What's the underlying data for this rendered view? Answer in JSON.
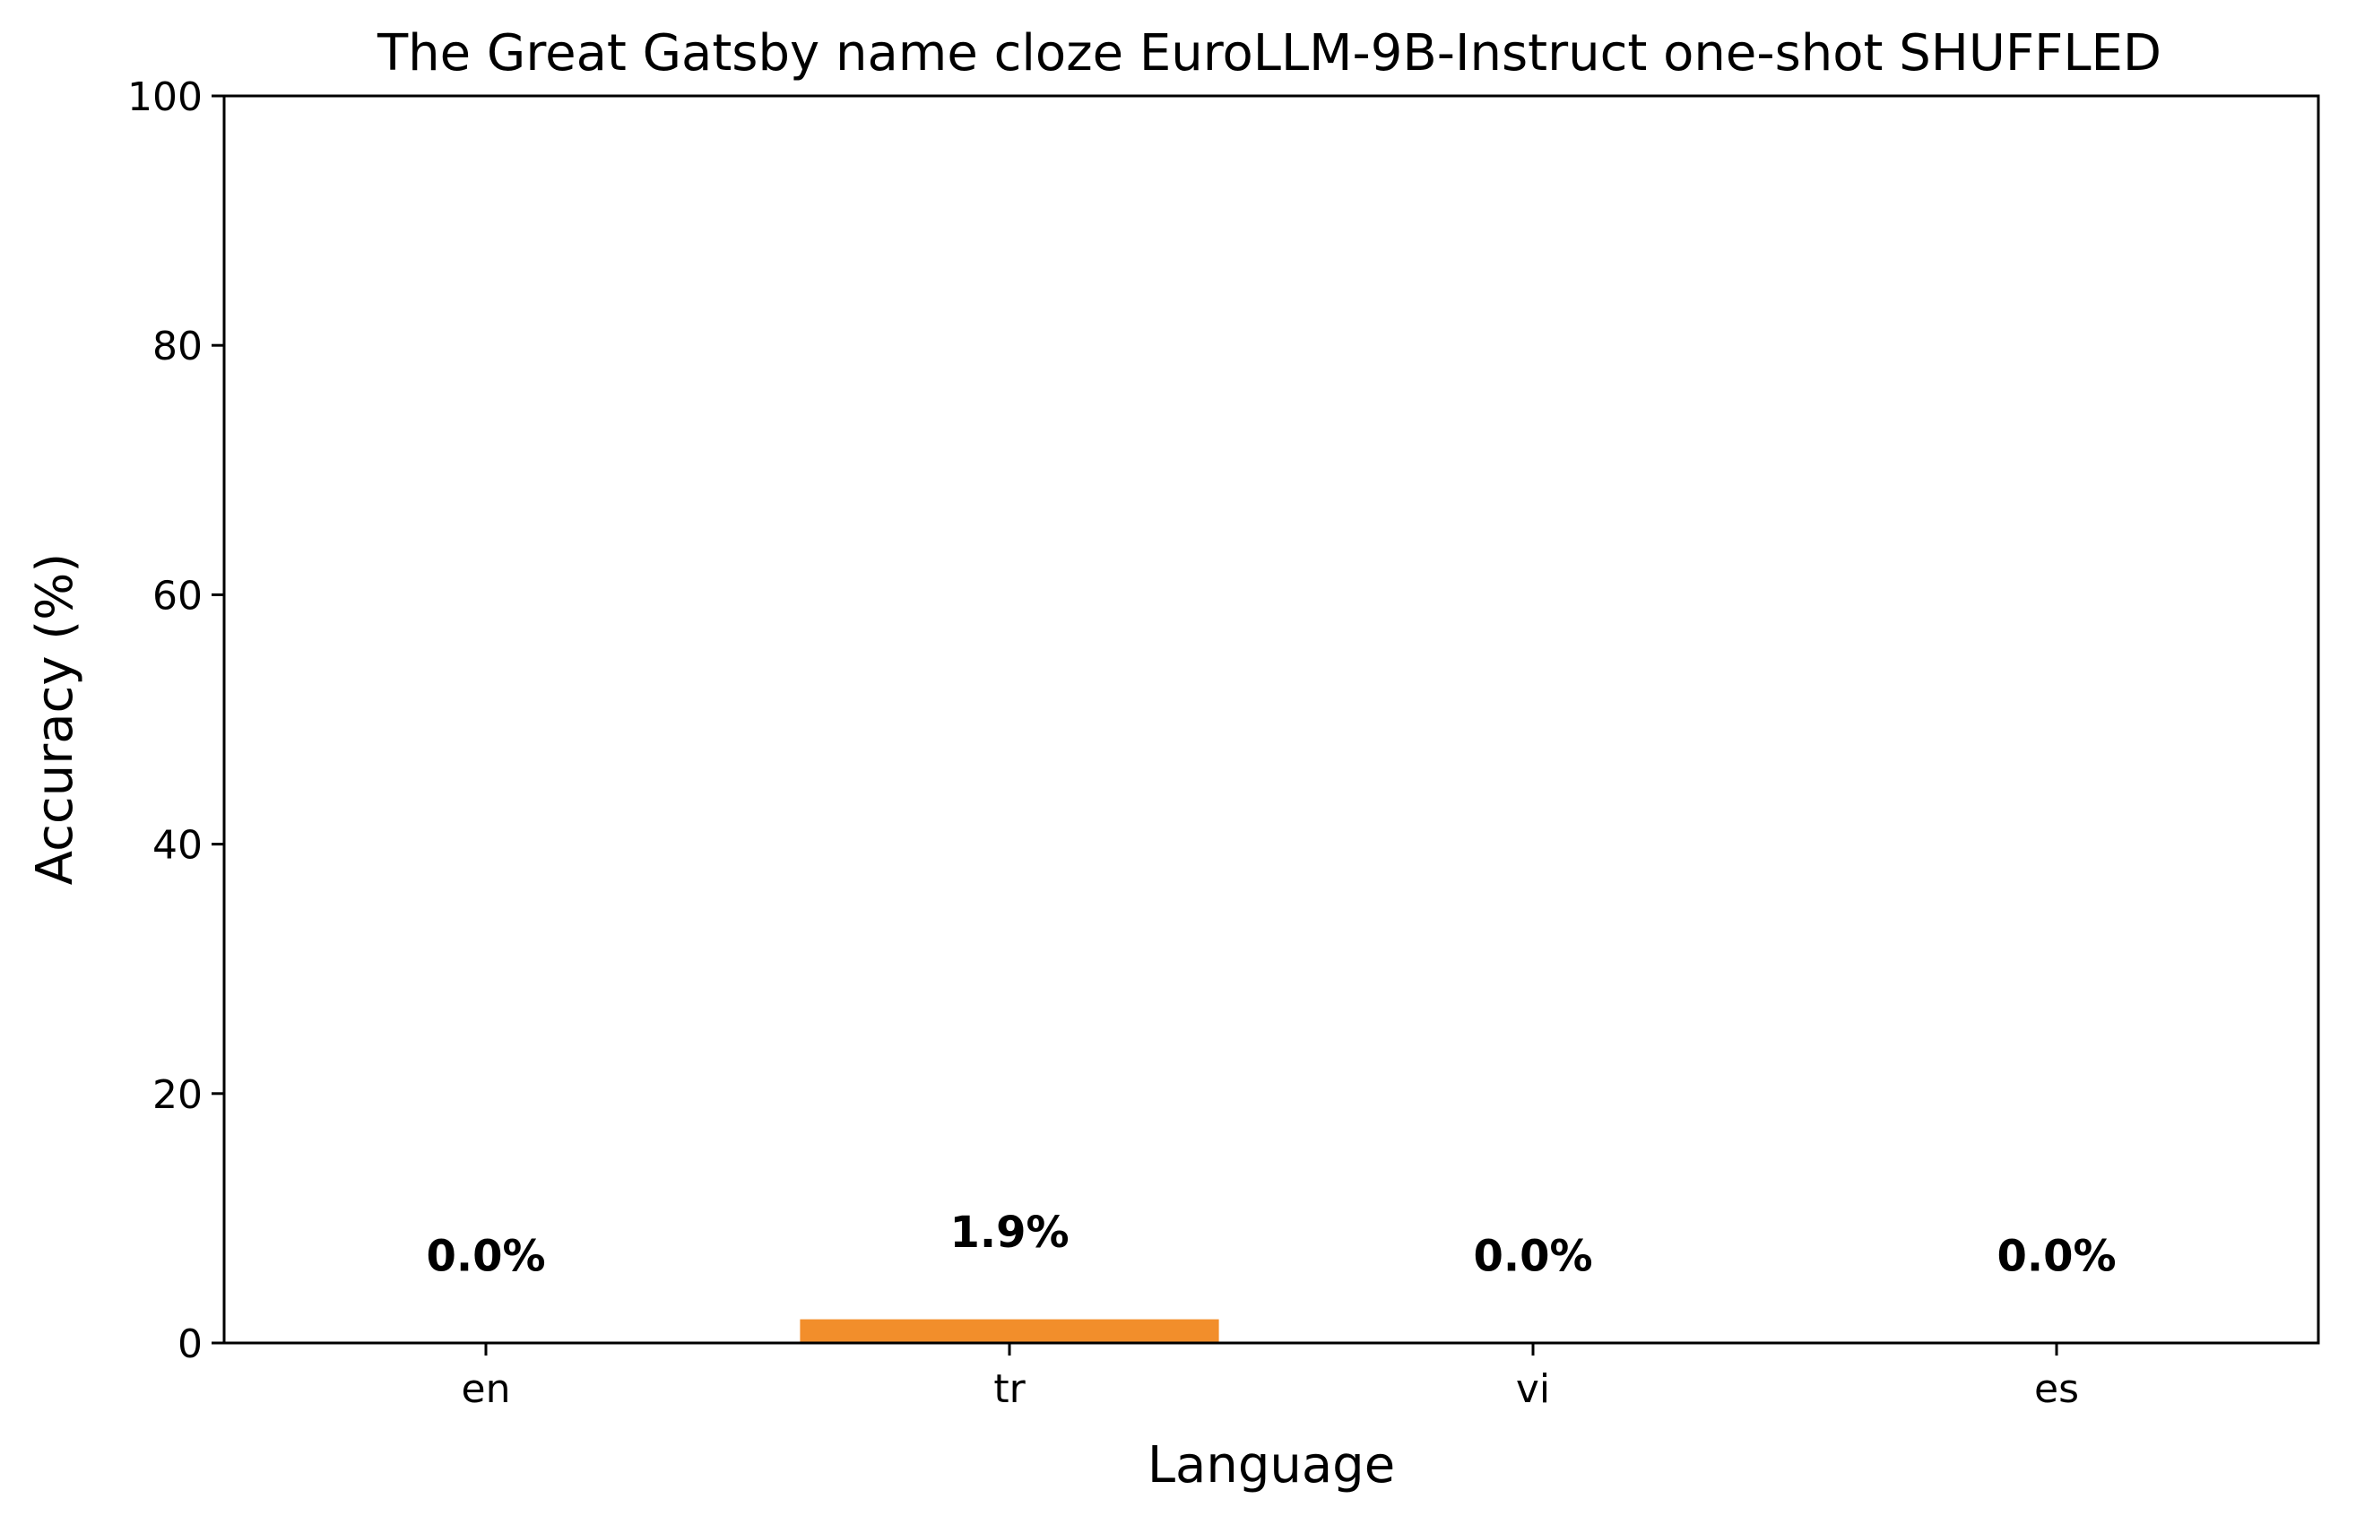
{
  "chart_data": {
    "type": "bar",
    "title": "The Great Gatsby name cloze EuroLLM-9B-Instruct one-shot SHUFFLED",
    "xlabel": "Language",
    "ylabel": "Accuracy (%)",
    "categories": [
      "en",
      "tr",
      "vi",
      "es"
    ],
    "values": [
      0.0,
      1.9,
      0.0,
      0.0
    ],
    "data_labels": [
      "0.0%",
      "1.9%",
      "0.0%",
      "0.0%"
    ],
    "ylim": [
      0,
      100
    ],
    "yticks": [
      0,
      20,
      40,
      60,
      80,
      100
    ],
    "ytick_labels": [
      "0",
      "20",
      "40",
      "60",
      "80",
      "100"
    ],
    "grid": false,
    "bar_color": "#F28E2B"
  }
}
